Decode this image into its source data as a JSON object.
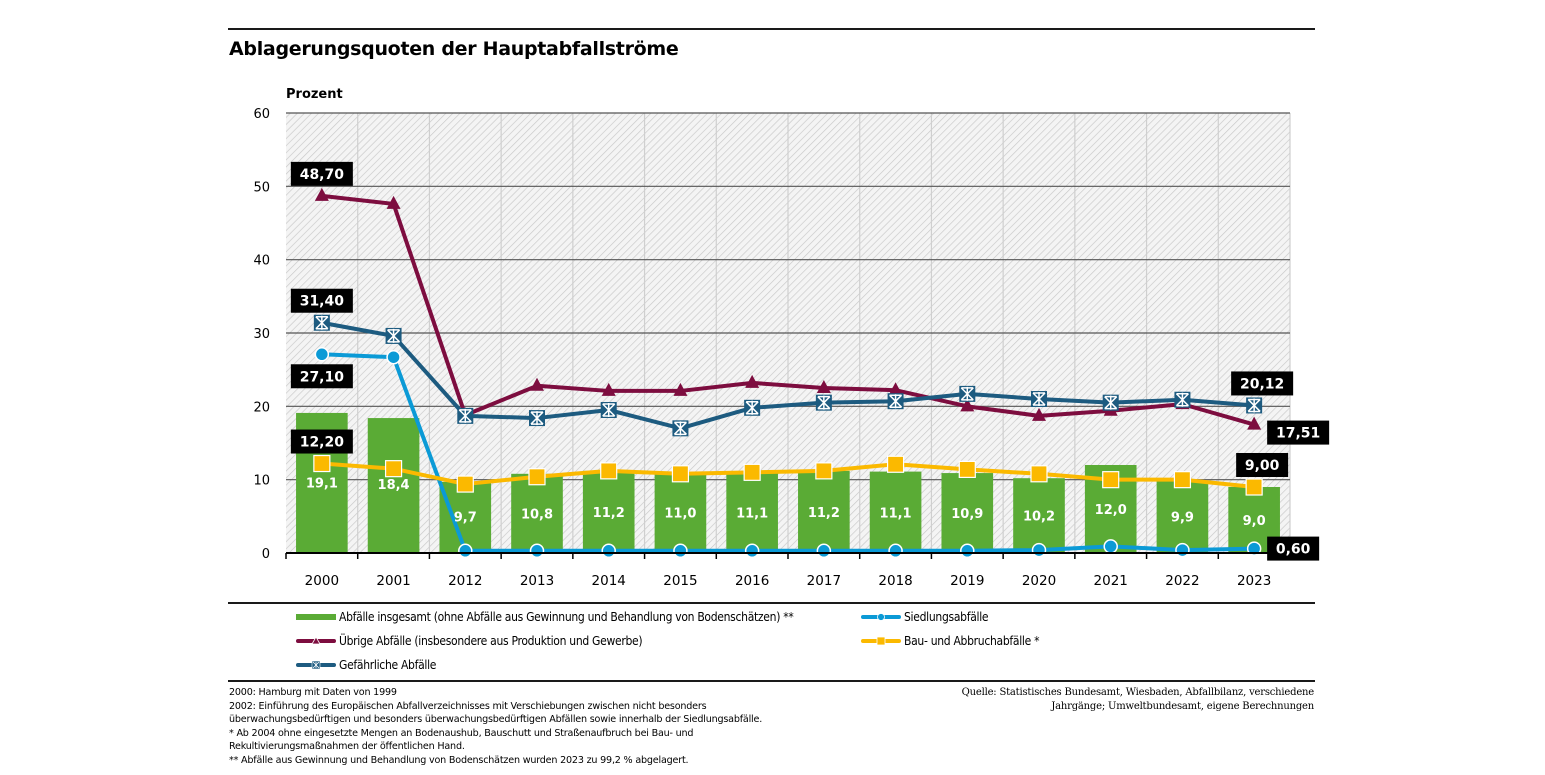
{
  "title": "Ablagerungsquoten der Hauptabfallströme",
  "colors": {
    "bar": "#5aab35",
    "uebrige": "#7d0d3f",
    "gefaehrlich": "#1d5b80",
    "siedlung": "#0b9ad6",
    "bau": "#fbb900",
    "label_bg": "#000000",
    "grid": "#555555"
  },
  "chart_data": {
    "type": "bar",
    "title": "Ablagerungsquoten der Hauptabfallströme",
    "ylabel": "Prozent",
    "xlabel": "",
    "ylim": [
      0,
      60
    ],
    "yticks": [
      0,
      10,
      20,
      30,
      40,
      50,
      60
    ],
    "grid": true,
    "legend_position": "bottom",
    "categories": [
      "2000",
      "2001",
      "2012",
      "2013",
      "2014",
      "2015",
      "2016",
      "2017",
      "2018",
      "2019",
      "2020",
      "2021",
      "2022",
      "2023"
    ],
    "bars": {
      "name": "Abfälle insgesamt (ohne Abfälle aus Gewinnung und Behandlung von Bodenschätzen) **",
      "values": [
        19.1,
        18.4,
        9.7,
        10.8,
        11.2,
        11.0,
        11.1,
        11.2,
        11.1,
        10.9,
        10.2,
        12.0,
        9.9,
        9.0
      ],
      "labels": [
        "19,1",
        "18,4",
        "9,7",
        "10,8",
        "11,2",
        "11,0",
        "11,1",
        "11,2",
        "11,1",
        "10,9",
        "10,2",
        "12,0",
        "9,9",
        "9,0"
      ]
    },
    "series": [
      {
        "key": "uebrige",
        "name": "Übrige Abfälle (insbesondere aus Produktion und Gewerbe)",
        "marker": "triangle",
        "values": [
          48.7,
          47.6,
          18.8,
          22.8,
          22.1,
          22.1,
          23.2,
          22.5,
          22.2,
          20.0,
          18.7,
          19.4,
          20.3,
          17.51
        ]
      },
      {
        "key": "gefaehrlich",
        "name": "Gefährliche Abfälle",
        "marker": "asterisk-square",
        "values": [
          31.4,
          29.6,
          18.7,
          18.4,
          19.5,
          17.0,
          19.8,
          20.5,
          20.7,
          21.7,
          21.0,
          20.5,
          20.9,
          20.12
        ]
      },
      {
        "key": "siedlung",
        "name": "Siedlungsabfälle",
        "marker": "circle",
        "values": [
          27.1,
          26.7,
          0.3,
          0.3,
          0.3,
          0.3,
          0.3,
          0.3,
          0.3,
          0.3,
          0.4,
          0.9,
          0.4,
          0.6
        ]
      },
      {
        "key": "bau",
        "name": "Bau- und Abbruchabfälle *",
        "marker": "square",
        "values": [
          12.2,
          11.5,
          9.4,
          10.4,
          11.2,
          10.8,
          11.0,
          11.2,
          12.1,
          11.4,
          10.8,
          10.0,
          10.0,
          9.0
        ]
      }
    ],
    "annotations": [
      {
        "series": "uebrige",
        "index": 0,
        "text": "48,70",
        "placement": "above"
      },
      {
        "series": "gefaehrlich",
        "index": 0,
        "text": "31,40",
        "placement": "above"
      },
      {
        "series": "siedlung",
        "index": 0,
        "text": "27,10",
        "placement": "below"
      },
      {
        "series": "bau",
        "index": 0,
        "text": "12,20",
        "placement": "above"
      },
      {
        "series": "gefaehrlich",
        "index": 13,
        "text": "20,12",
        "placement": "above"
      },
      {
        "series": "uebrige",
        "index": 13,
        "text": "17,51",
        "placement": "right"
      },
      {
        "series": "bau",
        "index": 13,
        "text": "9,00",
        "placement": "above"
      },
      {
        "series": "siedlung",
        "index": 13,
        "text": "0,60",
        "placement": "right"
      }
    ]
  },
  "legend": {
    "bars": "Abfälle insgesamt (ohne Abfälle aus Gewinnung und Behandlung von Bodenschätzen) **",
    "uebrige": "Übrige Abfälle (insbesondere aus Produktion und Gewerbe)",
    "gefaehrlich": "Gefährliche Abfälle",
    "siedlung": "Siedlungsabfälle",
    "bau": "Bau- und Abbruchabfälle *"
  },
  "notes": [
    "2000: Hamburg mit Daten von 1999",
    "2002: Einführung des Europäischen Abfallverzeichnisses mit Verschiebungen zwischen nicht besonders",
    "überwachungsbedürftigen und besonders überwachungsbedürftigen Abfällen sowie innerhalb der Siedlungsabfälle.",
    "* Ab 2004 ohne eingesetzte Mengen an Bodenaushub, Bauschutt und Straßenaufbruch bei Bau- und",
    "Rekultivierungsmaßnahmen der öffentlichen Hand.",
    "** Abfälle aus Gewinnung und Behandlung von Bodenschätzen wurden 2023 zu 99,2 % abgelagert."
  ],
  "source": [
    "Quelle: Statistisches Bundesamt, Wiesbaden, Abfallbilanz,  verschiedene",
    "Jahrgänge; Umweltbundesamt, eigene Berechnungen"
  ]
}
